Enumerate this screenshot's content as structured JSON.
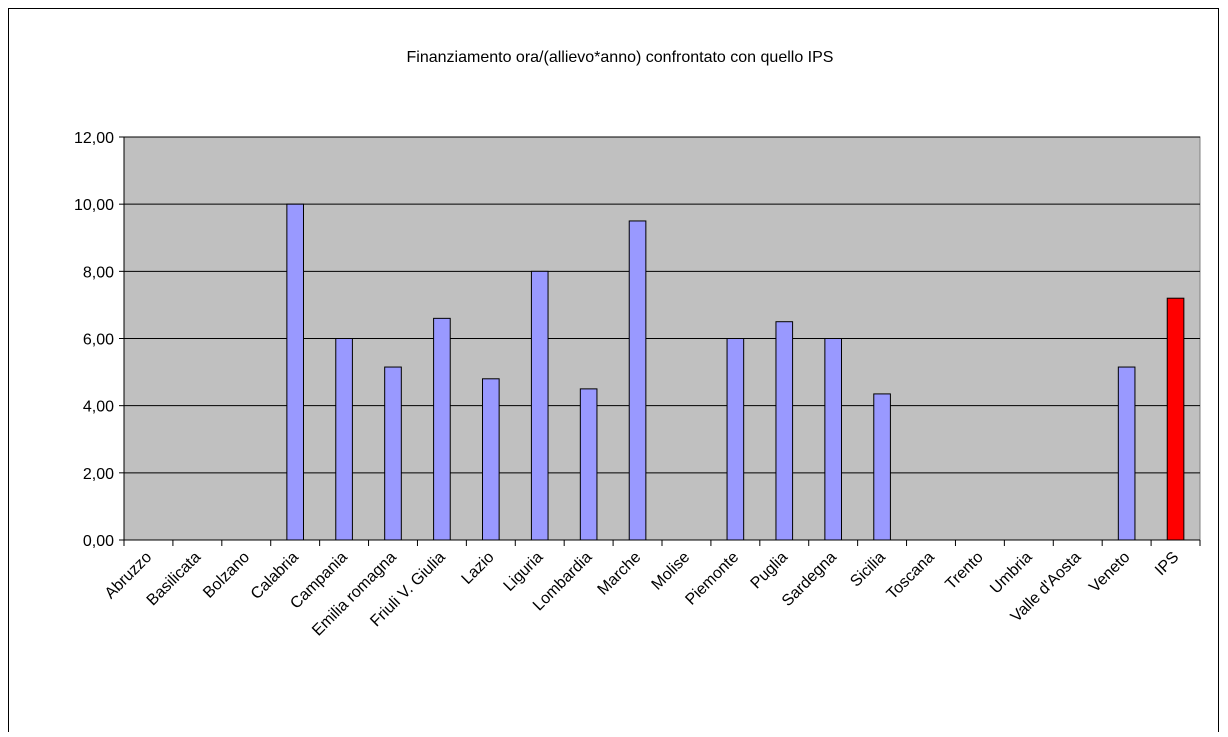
{
  "chart_data": {
    "type": "bar",
    "title": "Finanziamento ora/(allievo*anno) confrontato con quello IPS",
    "categories": [
      "Abruzzo",
      "Basilicata",
      "Bolzano",
      "Calabria",
      "Campania",
      "Emilia romagna",
      "Friuli V. Giulia",
      "Lazio",
      "Liguria",
      "Lombardia",
      "Marche",
      "Molise",
      "Piemonte",
      "Puglia",
      "Sardegna",
      "Sicilia",
      "Toscana",
      "Trento",
      "Umbria",
      "Valle d'Aosta",
      "Veneto",
      "IPS"
    ],
    "values": [
      null,
      null,
      null,
      10,
      6,
      5.15,
      6.6,
      4.8,
      8,
      4.5,
      9.5,
      null,
      6,
      6.5,
      6,
      4.35,
      null,
      null,
      null,
      null,
      5.15,
      7.2
    ],
    "colors": [
      "#9999ff",
      "#9999ff",
      "#9999ff",
      "#9999ff",
      "#9999ff",
      "#9999ff",
      "#9999ff",
      "#9999ff",
      "#9999ff",
      "#9999ff",
      "#9999ff",
      "#9999ff",
      "#9999ff",
      "#9999ff",
      "#9999ff",
      "#9999ff",
      "#9999ff",
      "#9999ff",
      "#9999ff",
      "#9999ff",
      "#9999ff",
      "#ff0000"
    ],
    "ylim": [
      0,
      12
    ],
    "yticks": [
      {
        "value": 0,
        "label": "0,00"
      },
      {
        "value": 2,
        "label": "2,00"
      },
      {
        "value": 4,
        "label": "4,00"
      },
      {
        "value": 6,
        "label": "6,00"
      },
      {
        "value": 8,
        "label": "8,00"
      },
      {
        "value": 10,
        "label": "10,00"
      },
      {
        "value": 12,
        "label": "12,00"
      }
    ],
    "grid": true,
    "plot_background": "#c0c0c0"
  }
}
